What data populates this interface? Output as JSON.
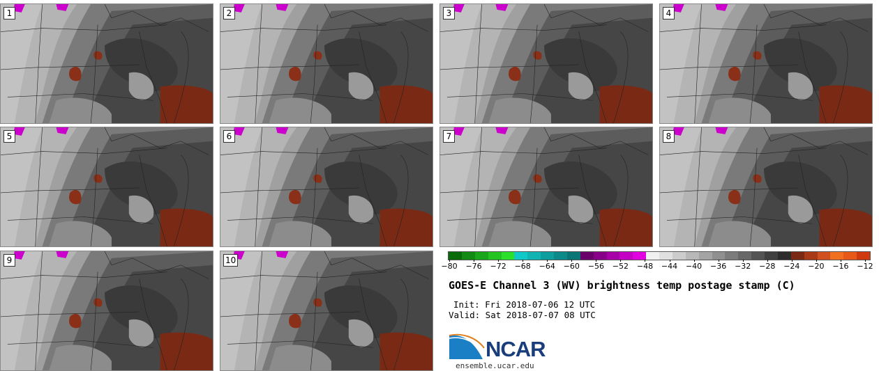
{
  "panels": [
    {
      "label": "1"
    },
    {
      "label": "2"
    },
    {
      "label": "3"
    },
    {
      "label": "4"
    },
    {
      "label": "5"
    },
    {
      "label": "6"
    },
    {
      "label": "7"
    },
    {
      "label": "8"
    },
    {
      "label": "9"
    },
    {
      "label": "10"
    }
  ],
  "colorbar": {
    "ticks": [
      "−80",
      "−76",
      "−72",
      "−68",
      "−64",
      "−60",
      "−56",
      "−52",
      "−48",
      "−44",
      "−40",
      "−36",
      "−32",
      "−28",
      "−24",
      "−20",
      "−16",
      "−12"
    ],
    "colors": [
      "#0a6b0a",
      "#138a13",
      "#1aa61a",
      "#22c322",
      "#2be02b",
      "#10c8c8",
      "#12b3b3",
      "#0f9e9e",
      "#0c8a8a",
      "#097575",
      "#6a006a",
      "#880088",
      "#a600a6",
      "#c400c4",
      "#e000e0",
      "#f0f0f0",
      "#e0e0e0",
      "#cccccc",
      "#b8b8b8",
      "#a4a4a4",
      "#909090",
      "#7c7c7c",
      "#686868",
      "#545454",
      "#404040",
      "#2c2c2c",
      "#7a2a14",
      "#a83a18",
      "#d05020",
      "#f07020",
      "#e85818",
      "#d03810"
    ]
  },
  "title": "GOES-E Channel 3 (WV) brightness temp postage stamp (C)",
  "init": "Init: Fri 2018-07-06 12 UTC",
  "valid": "Valid: Sat 2018-07-07 08 UTC",
  "logo": {
    "text": "NCAR",
    "site": "ensemble.ucar.edu"
  }
}
